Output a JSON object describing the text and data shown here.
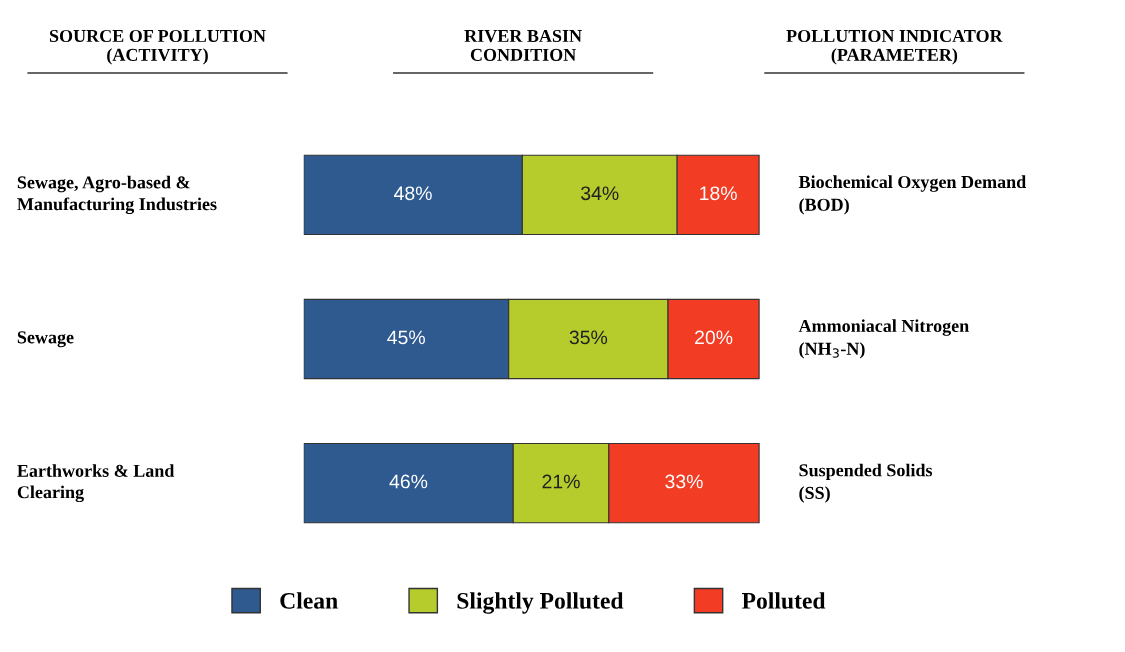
{
  "chart_data": {
    "type": "bar",
    "orientation": "horizontal",
    "stacked": true,
    "categories": [
      "Sewage, Agro-based &\nManufacturing Industries",
      "Sewage",
      "Earthworks & Land\nClearing"
    ],
    "series": [
      {
        "name": "Clean",
        "color": "#2f5a90",
        "values": [
          48,
          45,
          46
        ],
        "value_labels": [
          "48%",
          "45%",
          "46%"
        ]
      },
      {
        "name": "Slightly Polluted",
        "color": "#b6cc2c",
        "values": [
          34,
          35,
          21
        ],
        "value_labels": [
          "34%",
          "35%",
          "21%"
        ]
      },
      {
        "name": "Polluted",
        "color": "#f23c24",
        "values": [
          18,
          20,
          33
        ],
        "value_labels": [
          "18%",
          "20%",
          "33%"
        ]
      }
    ],
    "legend": "bottom",
    "annotations": [
      "SOURCE OF POLLUTION\n(ACTIVITY)",
      "RIVER BASIN\nCONDITION",
      "POLLUTION INDICATOR\n(PARAMETER)",
      "Biochemical Oxygen Demand\n(BOD)",
      "Ammoniacal Nitrogen\n(NH$_{3}$-N)",
      "Suspended Solids\n(SS)"
    ]
  }
}
